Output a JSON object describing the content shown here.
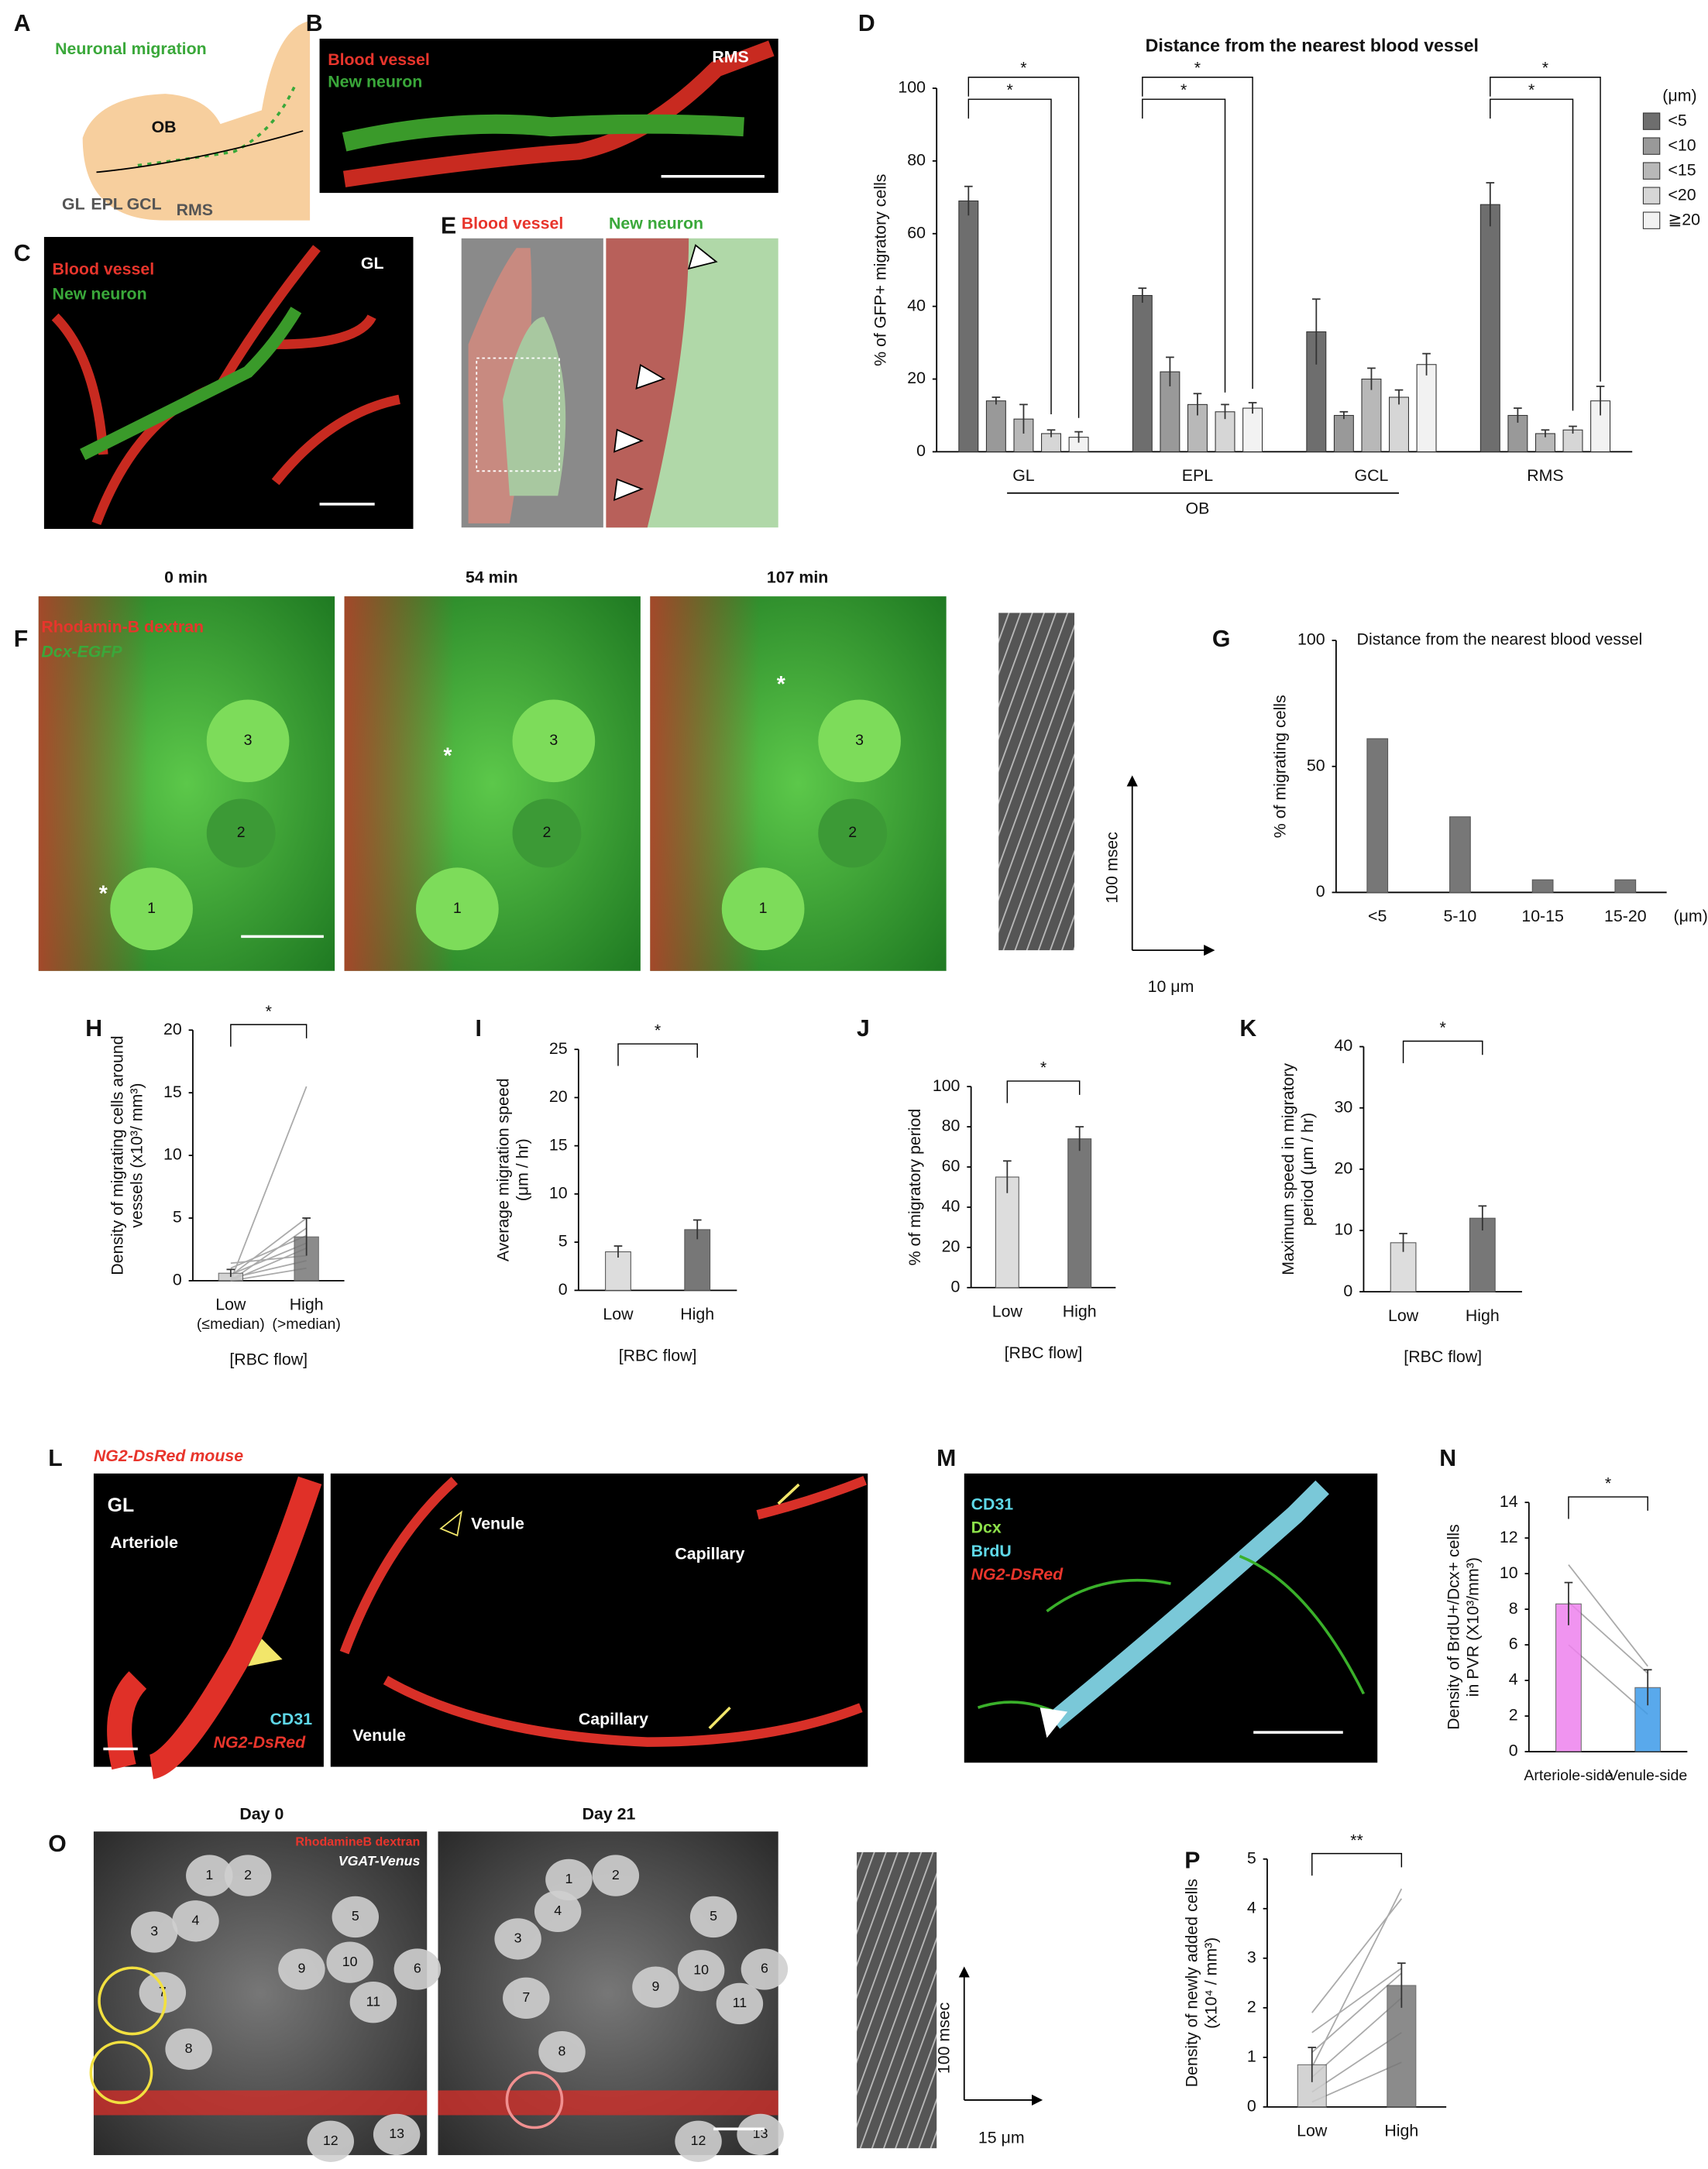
{
  "letters": [
    "A",
    "B",
    "C",
    "D",
    "E",
    "F",
    "G",
    "H",
    "I",
    "J",
    "K",
    "L",
    "M",
    "N",
    "O",
    "P"
  ],
  "A": {
    "title": "Neuronal migration",
    "labels": [
      "OB",
      "GL",
      "EPL",
      "GCL",
      "RMS"
    ]
  },
  "B": {
    "labels": [
      "Blood vessel",
      "New neuron",
      "RMS"
    ]
  },
  "C": {
    "labels": [
      "Blood vessel",
      "New neuron",
      "GL"
    ]
  },
  "E": {
    "labels": [
      "Blood vessel",
      "New neuron"
    ]
  },
  "F": {
    "times": [
      "0 min",
      "54 min",
      "107 min"
    ],
    "labels": [
      "Rhodamin-B dextran",
      "Dcx-EGFP"
    ],
    "cells": [
      "1",
      "2",
      "3"
    ],
    "marker": "*",
    "scale": [
      "100 msec",
      "10 μm"
    ]
  },
  "L": {
    "title": "NG2-DsRed mouse",
    "labels": [
      "GL",
      "Arteriole",
      "CD31",
      "NG2-DsRed",
      "Venule",
      "Capillary",
      "Venule",
      "Capillary"
    ]
  },
  "M": {
    "labels": [
      "CD31",
      "Dcx",
      "BrdU",
      "NG2-DsRed"
    ]
  },
  "O": {
    "times": [
      "Day 0",
      "Day 21"
    ],
    "labels": [
      "RhodamineB dextran",
      "VGAT-Venus"
    ],
    "cells": [
      "1",
      "2",
      "3",
      "4",
      "5",
      "6",
      "7",
      "8",
      "9",
      "10",
      "11",
      "12",
      "13"
    ],
    "scale": [
      "100 msec",
      "15 μm"
    ]
  },
  "chart_data": [
    {
      "type": "bar",
      "title": "Distance from the nearest blood vessel",
      "y_label": [
        "% of GFP+ migratory cells"
      ],
      "categories": [
        "GL",
        "EPL",
        "GCL",
        "RMS"
      ],
      "group_label": "OB",
      "legend_title": "(μm)",
      "series": [
        {
          "name": "<5",
          "color": "#6e6e6e",
          "values": [
            69,
            43,
            33,
            68
          ],
          "errors": [
            4,
            2,
            9,
            6
          ]
        },
        {
          "name": "<10",
          "color": "#999999",
          "values": [
            14,
            22,
            10,
            10
          ],
          "errors": [
            1,
            4,
            1,
            2
          ]
        },
        {
          "name": "<15",
          "color": "#b8b8b8",
          "values": [
            9,
            13,
            20,
            5
          ],
          "errors": [
            4,
            3,
            3,
            1
          ]
        },
        {
          "name": "<20",
          "color": "#d6d6d6",
          "values": [
            5,
            11,
            15,
            6
          ],
          "errors": [
            1,
            2,
            2,
            1
          ]
        },
        {
          "name": "≧20",
          "color": "#f2f2f2",
          "values": [
            4,
            12,
            24,
            14
          ],
          "errors": [
            1.5,
            1.5,
            3,
            4
          ]
        }
      ],
      "ylim": [
        0,
        100
      ],
      "yticks": [
        0,
        20,
        40,
        60,
        80,
        100
      ],
      "significance": [
        "*",
        "*",
        "*",
        "*",
        "*",
        "*"
      ]
    },
    {
      "type": "bar",
      "title": "Distance from the nearest blood vessel",
      "y_label": [
        "% of migrating cells"
      ],
      "x_unit": "(μm)",
      "categories": [
        "<5",
        "5-10",
        "10-15",
        "15-20"
      ],
      "values": [
        61,
        30,
        5,
        5
      ],
      "color": "#777777",
      "ylim": [
        0,
        100
      ],
      "yticks": [
        0,
        50,
        100
      ]
    },
    {
      "type": "bar",
      "y_label": [
        "Density of migrating cells around",
        "vessels (x10³/ mm³)"
      ],
      "x_label": "[RBC flow]",
      "categories": [
        "Low",
        "High"
      ],
      "category_notes": [
        "(≤median)",
        "(>median)"
      ],
      "values": [
        0.6,
        3.5
      ],
      "errors": [
        0.3,
        1.5
      ],
      "colors": [
        "#cccccc",
        "#777777"
      ],
      "pairs": [
        [
          0,
          15.5
        ],
        [
          0,
          4.2
        ],
        [
          0.4,
          5
        ],
        [
          1,
          3.6
        ],
        [
          0.5,
          3
        ],
        [
          0,
          2.6
        ],
        [
          1.4,
          2
        ],
        [
          0.2,
          1.6
        ],
        [
          0,
          1
        ]
      ],
      "ylim": [
        0,
        20
      ],
      "yticks": [
        0,
        5,
        10,
        15,
        20
      ],
      "significance": [
        "*"
      ]
    },
    {
      "type": "bar",
      "y_label": [
        "Average migration speed",
        "(μm / hr)"
      ],
      "x_label": "[RBC flow]",
      "categories": [
        "Low",
        "High"
      ],
      "values": [
        4,
        6.3
      ],
      "errors": [
        0.6,
        1
      ],
      "colors": [
        "#dddddd",
        "#777777"
      ],
      "ylim": [
        0,
        25
      ],
      "yticks": [
        0,
        5,
        10,
        15,
        20,
        25
      ],
      "significance": [
        "*"
      ]
    },
    {
      "type": "bar",
      "y_label": [
        "% of migratory period"
      ],
      "x_label": "[RBC flow]",
      "categories": [
        "Low",
        "High"
      ],
      "values": [
        55,
        74
      ],
      "errors": [
        8,
        6
      ],
      "colors": [
        "#dddddd",
        "#777777"
      ],
      "ylim": [
        0,
        100
      ],
      "yticks": [
        0,
        20,
        40,
        60,
        80,
        100
      ],
      "significance": [
        "*"
      ]
    },
    {
      "type": "bar",
      "y_label": [
        "Maximum speed in migratory",
        "period (μm / hr)"
      ],
      "x_label": "[RBC flow]",
      "categories": [
        "Low",
        "High"
      ],
      "values": [
        8,
        12
      ],
      "errors": [
        1.5,
        2
      ],
      "colors": [
        "#dddddd",
        "#777777"
      ],
      "ylim": [
        0,
        40
      ],
      "yticks": [
        0,
        10,
        20,
        30,
        40
      ],
      "significance": [
        "*"
      ]
    },
    {
      "type": "bar",
      "y_label": [
        "Density of BrdU+/Dcx+ cells",
        "in PVR (X10³/mm³)"
      ],
      "categories": [
        "Arteriole-side",
        "Venule-side"
      ],
      "values": [
        8.3,
        3.6
      ],
      "errors": [
        1.2,
        1
      ],
      "colors": [
        "#ee82ee",
        "#3d9be9"
      ],
      "pairs": [
        [
          10.5,
          4.8
        ],
        [
          8.4,
          4.4
        ],
        [
          6,
          2.1
        ]
      ],
      "ylim": [
        0,
        14
      ],
      "yticks": [
        0,
        2,
        4,
        6,
        8,
        10,
        12,
        14
      ],
      "significance": [
        "*"
      ]
    },
    {
      "type": "bar",
      "y_label": [
        "Density of newly added cells",
        "(x10⁴ / mm³)"
      ],
      "categories": [
        "Low",
        "High"
      ],
      "values": [
        0.85,
        2.45
      ],
      "errors": [
        0.35,
        0.45
      ],
      "colors": [
        "#cccccc",
        "#777777"
      ],
      "pairs": [
        [
          0.8,
          4.4
        ],
        [
          1.9,
          4.2
        ],
        [
          1.5,
          2.8
        ],
        [
          1.1,
          2.7
        ],
        [
          0.6,
          2.2
        ],
        [
          0.3,
          1.5
        ],
        [
          0.1,
          0.9
        ]
      ],
      "ylim": [
        0,
        5
      ],
      "yticks": [
        0,
        1,
        2,
        3,
        4,
        5
      ],
      "significance": [
        "**"
      ]
    }
  ]
}
